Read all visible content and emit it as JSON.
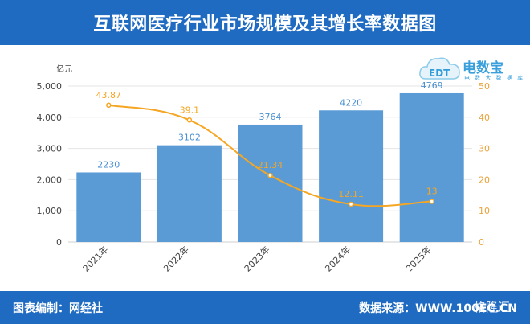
{
  "header": {
    "title": "互联网医疗行业市场规模及其增长率数据图"
  },
  "footer": {
    "editor": "图表编制：网经社",
    "source": "数据来源：WWW.100EC.CN"
  },
  "logo": {
    "name": "电数宝",
    "sub": "电 数 大 数 据 库",
    "mark": "EDT"
  },
  "watermark": {
    "text": "格隆汇"
  },
  "colors": {
    "header_bg": "#1f6bc2",
    "bar": "#5b9bd5",
    "line": "#f5a623",
    "bar_label": "#4a90d0",
    "axis_text": "#444444",
    "right_axis_text": "#e8a33c",
    "grid": "#e4e4e4"
  },
  "chart_data": {
    "type": "bar",
    "categories": [
      "2021年",
      "2022年",
      "2023年",
      "2024年",
      "2025年"
    ],
    "series": [
      {
        "values": [
          2230,
          3102,
          3764,
          4220,
          4769
        ],
        "axis": "left",
        "kind": "bar"
      },
      {
        "values": [
          43.87,
          39.1,
          21.34,
          12.11,
          13
        ],
        "axis": "right",
        "kind": "line"
      }
    ],
    "y_left": {
      "unit_label": "亿元",
      "min": 0,
      "max": 5000,
      "ticks": [
        "0",
        "1,000",
        "2,000",
        "3,000",
        "4,000",
        "5,000"
      ],
      "tick_values": [
        0,
        1000,
        2000,
        3000,
        4000,
        5000
      ]
    },
    "y_right": {
      "min": 0,
      "max": 50,
      "ticks": [
        "0",
        "10",
        "20",
        "30",
        "40",
        "50"
      ],
      "tick_values": [
        0,
        10,
        20,
        30,
        40,
        50
      ]
    },
    "bar_labels": [
      "2230",
      "3102",
      "3764",
      "4220",
      "4769"
    ],
    "line_labels": [
      "43.87",
      "39.1",
      "21.34",
      "12.11",
      "13"
    ],
    "grid": true,
    "legend": "none"
  }
}
